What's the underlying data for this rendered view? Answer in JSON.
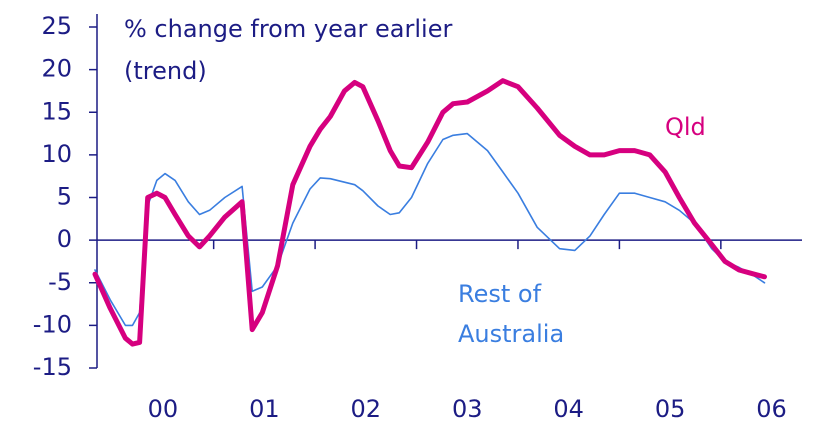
{
  "chart_data": {
    "type": "line",
    "title_lines": [
      "% change from year earlier",
      "(trend)"
    ],
    "x": [
      -0.67,
      -0.52,
      -0.37,
      -0.3,
      -0.23,
      -0.15,
      -0.06,
      0.02,
      0.12,
      0.25,
      0.36,
      0.46,
      0.61,
      0.78,
      0.88,
      0.98,
      1.13,
      1.28,
      1.45,
      1.55,
      1.65,
      1.79,
      1.89,
      1.97,
      2.12,
      2.24,
      2.33,
      2.45,
      2.61,
      2.76,
      2.86,
      3.0,
      3.2,
      3.35,
      3.5,
      3.69,
      3.91,
      4.06,
      4.21,
      4.35,
      4.5,
      4.65,
      4.8,
      4.95,
      5.09,
      5.24,
      5.41,
      5.54,
      5.68,
      5.83,
      5.93
    ],
    "series": [
      {
        "name_lines": [
          "Qld"
        ],
        "color": "#d6007f",
        "width": 5,
        "values": [
          -4,
          -8,
          -11.5,
          -12.2,
          -12,
          5,
          5.5,
          5,
          3,
          0.5,
          -0.8,
          0.5,
          2.7,
          4.5,
          -10.5,
          -8.5,
          -3,
          6.5,
          11,
          13,
          14.5,
          17.5,
          18.5,
          18,
          14,
          10.5,
          8.7,
          8.5,
          11.5,
          15,
          16,
          16.2,
          17.5,
          18.7,
          18,
          15.5,
          12.3,
          11,
          10,
          10,
          10.5,
          10.5,
          10,
          8,
          5,
          2,
          -0.5,
          -2.5,
          -3.5,
          -4,
          -4.3
        ]
      },
      {
        "name_lines": [
          "Rest of",
          "Australia"
        ],
        "color": "#3a7ee0",
        "width": 1.6,
        "values": [
          -3.5,
          -7,
          -10,
          -10,
          -8.5,
          4,
          7,
          7.8,
          7,
          4.5,
          3,
          3.5,
          5,
          6.3,
          -6,
          -5.5,
          -3,
          2,
          6,
          7.3,
          7.2,
          6.8,
          6.5,
          5.8,
          4,
          3,
          3.2,
          5,
          9,
          11.8,
          12.3,
          12.5,
          10.5,
          8,
          5.5,
          1.5,
          -1,
          -1.2,
          0.5,
          3,
          5.5,
          5.5,
          5,
          4.5,
          3.5,
          2,
          -1,
          -2.5,
          -3.2,
          -4.2,
          -5
        ]
      }
    ],
    "xlim": [
      -0.65,
      6.3
    ],
    "xticks": [
      {
        "value": 0,
        "label": "00"
      },
      {
        "value": 1,
        "label": "01"
      },
      {
        "value": 2,
        "label": "02"
      },
      {
        "value": 3,
        "label": "03"
      },
      {
        "value": 4,
        "label": "04"
      },
      {
        "value": 5,
        "label": "05"
      },
      {
        "value": 6,
        "label": "06"
      }
    ],
    "ylim": [
      -15,
      25
    ],
    "yticks": [
      -15,
      -10,
      -5,
      0,
      5,
      10,
      15,
      20,
      25
    ]
  }
}
